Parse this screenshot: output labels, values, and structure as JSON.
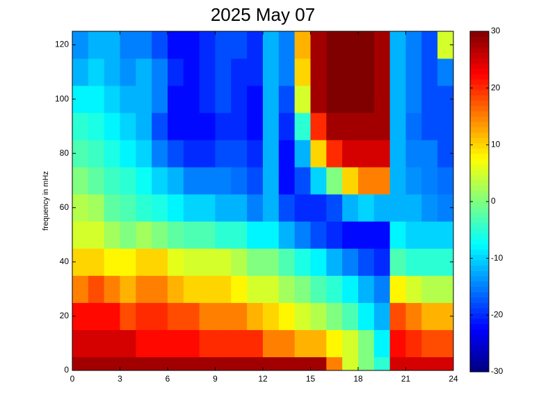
{
  "chart_data": {
    "type": "heatmap",
    "title": "2025 May 07",
    "y_label": "frequency in mHz",
    "colormap": "jet",
    "x": [
      0,
      1,
      2,
      3,
      4,
      5,
      6,
      7,
      8,
      9,
      10,
      11,
      12,
      13,
      14,
      15,
      16,
      17,
      18,
      19,
      20,
      21,
      22,
      23,
      24
    ],
    "y": [
      0,
      5,
      15,
      25,
      35,
      45,
      55,
      65,
      75,
      85,
      95,
      105,
      115,
      125
    ],
    "z": [
      [
        28,
        28,
        28,
        28,
        28,
        28,
        28,
        28,
        28,
        28,
        28,
        28,
        28,
        28,
        28,
        28,
        15,
        5,
        0,
        -5,
        25,
        25,
        25,
        25
      ],
      [
        25,
        25,
        25,
        25,
        22,
        22,
        22,
        22,
        20,
        20,
        20,
        20,
        15,
        15,
        12,
        12,
        8,
        5,
        0,
        -8,
        22,
        20,
        18,
        18
      ],
      [
        22,
        22,
        22,
        18,
        20,
        20,
        18,
        18,
        15,
        15,
        15,
        12,
        10,
        8,
        5,
        3,
        0,
        -3,
        -8,
        -12,
        18,
        15,
        12,
        12
      ],
      [
        15,
        18,
        15,
        12,
        15,
        15,
        12,
        10,
        10,
        10,
        8,
        5,
        5,
        2,
        0,
        -3,
        -5,
        -8,
        -12,
        -15,
        8,
        5,
        3,
        3
      ],
      [
        10,
        10,
        8,
        8,
        10,
        10,
        6,
        5,
        5,
        5,
        3,
        0,
        0,
        -3,
        -6,
        -8,
        -12,
        -15,
        -18,
        -20,
        -3,
        -5,
        -5,
        -5
      ],
      [
        5,
        5,
        2,
        0,
        2,
        0,
        -2,
        -3,
        -3,
        -5,
        -5,
        -8,
        -8,
        -12,
        -15,
        -18,
        -20,
        -22,
        -22,
        -22,
        -8,
        -10,
        -10,
        -10
      ],
      [
        3,
        2,
        -2,
        -3,
        -5,
        -6,
        -8,
        -10,
        -10,
        -12,
        -12,
        -15,
        -12,
        -18,
        -20,
        -20,
        -18,
        -12,
        -10,
        -12,
        -12,
        -12,
        -14,
        -15
      ],
      [
        0,
        -2,
        -4,
        -5,
        -7,
        -10,
        -12,
        -15,
        -15,
        -15,
        -16,
        -18,
        -12,
        -22,
        -18,
        -10,
        0,
        10,
        15,
        15,
        -12,
        -14,
        -15,
        -16
      ],
      [
        -3,
        -4,
        -6,
        -8,
        -10,
        -15,
        -18,
        -20,
        -20,
        -18,
        -18,
        -20,
        -12,
        -22,
        -12,
        10,
        20,
        25,
        25,
        25,
        -12,
        -15,
        -15,
        -18
      ],
      [
        -5,
        -6,
        -8,
        -10,
        -12,
        -18,
        -22,
        -22,
        -22,
        -20,
        -20,
        -22,
        -12,
        -20,
        -5,
        20,
        28,
        28,
        28,
        28,
        -12,
        -16,
        -18,
        -18
      ],
      [
        -8,
        -8,
        -10,
        -12,
        -12,
        -15,
        -22,
        -22,
        -20,
        -18,
        -20,
        -22,
        -12,
        -18,
        5,
        28,
        30,
        30,
        30,
        28,
        -12,
        -15,
        -18,
        -18
      ],
      [
        -12,
        -10,
        -12,
        -14,
        -12,
        -15,
        -20,
        -22,
        -20,
        -18,
        -20,
        -20,
        -12,
        -15,
        10,
        28,
        30,
        30,
        30,
        28,
        -12,
        -15,
        -18,
        -15
      ],
      [
        -14,
        -12,
        -12,
        -15,
        -15,
        -18,
        -22,
        -22,
        -20,
        -18,
        -18,
        -20,
        -12,
        -15,
        12,
        28,
        30,
        30,
        30,
        28,
        -12,
        -15,
        -18,
        5
      ]
    ],
    "xlim": [
      0,
      24
    ],
    "ylim": [
      0,
      125
    ],
    "xticks": [
      0,
      3,
      6,
      9,
      12,
      15,
      18,
      21,
      24
    ],
    "yticks": [
      0,
      20,
      40,
      60,
      80,
      100,
      120
    ],
    "clim": [
      -30,
      30
    ],
    "cticks": [
      -30,
      -20,
      -10,
      0,
      10,
      20,
      30
    ]
  }
}
